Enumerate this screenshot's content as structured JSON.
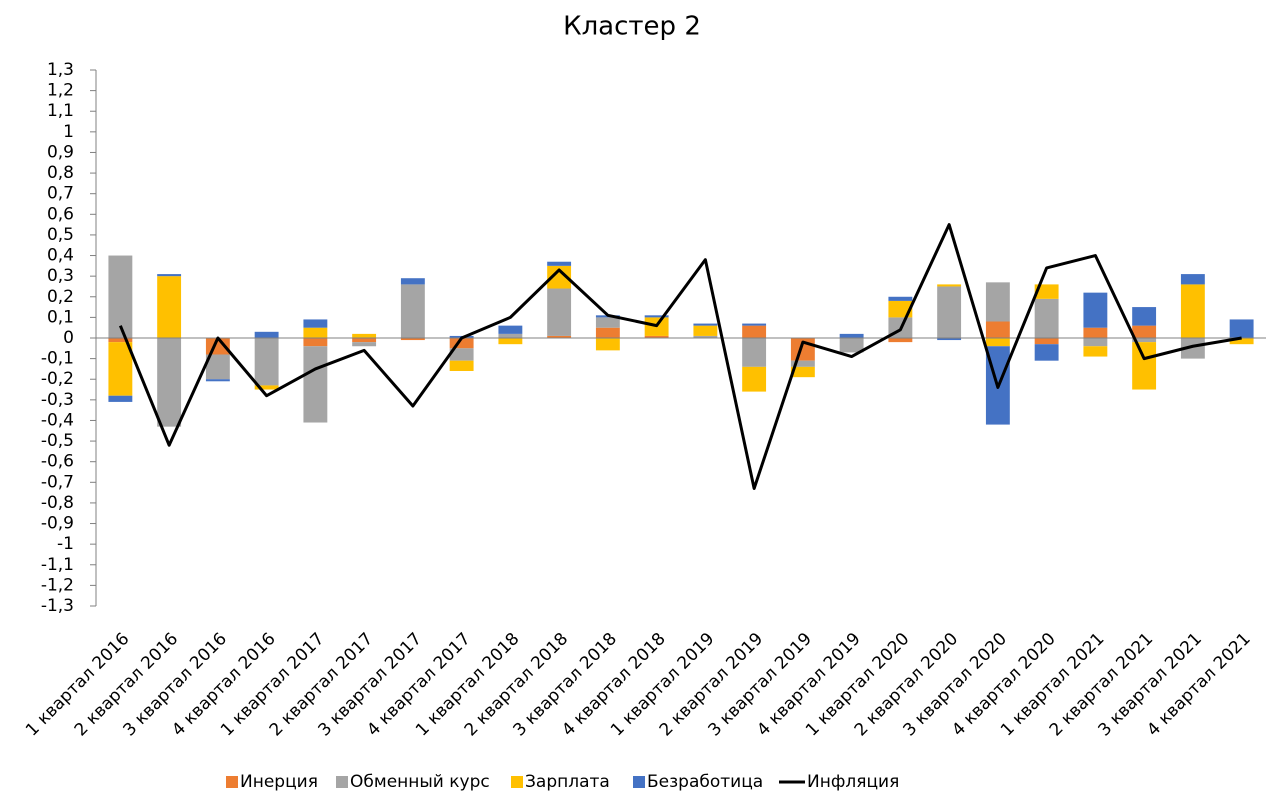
{
  "chart_data": {
    "type": "bar",
    "stacked": true,
    "title": "Кластер 2",
    "categories": [
      "1 квартал 2016",
      "2 квартал 2016",
      "3 квартал 2016",
      "4 квартал 2016",
      "1 квартал 2017",
      "2 квартал 2017",
      "3 квартал 2017",
      "4 квартал 2017",
      "1 квартал 2018",
      "2 квартал 2018",
      "3 квартал 2018",
      "4 квартал 2018",
      "1 квартал 2019",
      "2 квартал 2019",
      "3 квартал 2019",
      "4 квартал 2019",
      "1 квартал 2020",
      "2 квартал 2020",
      "3 квартал 2020",
      "4 квартал 2020",
      "1 квартал 2021",
      "2 квартал 2021",
      "3 квартал 2021",
      "4 квартал 2021"
    ],
    "series": [
      {
        "name": "Инерция",
        "type": "bar",
        "color": "#ed7d31",
        "values": [
          -0.02,
          0,
          -0.08,
          0,
          -0.04,
          -0.02,
          -0.01,
          -0.05,
          0,
          0.01,
          0.05,
          0.01,
          0,
          0.06,
          -0.11,
          0,
          -0.02,
          0,
          0.08,
          -0.03,
          0.05,
          0.06,
          0,
          0
        ]
      },
      {
        "name": "Обменный курс",
        "type": "bar",
        "color": "#a5a5a5",
        "values": [
          0.4,
          -0.43,
          -0.12,
          -0.23,
          -0.37,
          -0.02,
          0.26,
          -0.06,
          0.02,
          0.23,
          0.05,
          0,
          0.01,
          -0.14,
          -0.03,
          -0.07,
          0.1,
          0.25,
          0.19,
          0.19,
          -0.04,
          -0.02,
          -0.1,
          0
        ]
      },
      {
        "name": "Зарплата",
        "type": "bar",
        "color": "#ffc000",
        "values": [
          -0.26,
          0.3,
          0,
          -0.02,
          0.05,
          0.02,
          0,
          -0.05,
          -0.03,
          0.11,
          -0.06,
          0.09,
          0.05,
          -0.12,
          -0.05,
          0,
          0.08,
          0.01,
          -0.04,
          0.07,
          -0.05,
          -0.23,
          0.26,
          -0.03
        ]
      },
      {
        "name": "Безработица",
        "type": "bar",
        "color": "#4472c4",
        "values": [
          -0.03,
          0.01,
          -0.01,
          0.03,
          0.04,
          0,
          0.03,
          0.01,
          0.04,
          0.02,
          0.01,
          0.01,
          0.01,
          0.01,
          0,
          0.02,
          0.02,
          -0.01,
          -0.38,
          -0.08,
          0.17,
          0.09,
          0.05,
          0.09
        ]
      },
      {
        "name": "Инфляция",
        "type": "line",
        "color": "#000000",
        "values": [
          0.06,
          -0.52,
          0,
          -0.28,
          -0.15,
          -0.06,
          -0.33,
          0,
          0.1,
          0.33,
          0.11,
          0.06,
          0.38,
          -0.73,
          -0.02,
          -0.09,
          0.04,
          0.55,
          -0.24,
          0.34,
          0.4,
          -0.1,
          -0.04,
          0
        ]
      }
    ],
    "ylim": [
      -1.3,
      1.3
    ],
    "yticks": [
      {
        "value": 1.3,
        "label": "1,3"
      },
      {
        "value": 1.2,
        "label": "1,2"
      },
      {
        "value": 1.1,
        "label": "1,1"
      },
      1,
      {
        "value": 0.9,
        "label": "0,9"
      },
      {
        "value": 0.8,
        "label": "0,8"
      },
      {
        "value": 0.7,
        "label": "0,7"
      },
      {
        "value": 0.6,
        "label": "0,6"
      },
      {
        "value": 0.5,
        "label": "0,5"
      },
      {
        "value": 0.4,
        "label": "0,4"
      },
      {
        "value": 0.3,
        "label": "0,3"
      },
      {
        "value": 0.2,
        "label": "0,2"
      },
      {
        "value": 0.1,
        "label": "0,1"
      },
      0,
      {
        "value": -0.1,
        "label": "-0,1"
      },
      {
        "value": -0.2,
        "label": "-0,2"
      },
      {
        "value": -0.3,
        "label": "-0,3"
      },
      {
        "value": -0.4,
        "label": "-0,4"
      },
      {
        "value": -0.5,
        "label": "-0,5"
      },
      {
        "value": -0.6,
        "label": "-0,6"
      },
      {
        "value": -0.7,
        "label": "-0,7"
      },
      {
        "value": -0.8,
        "label": "-0,8"
      },
      {
        "value": -0.9,
        "label": "-0,9"
      },
      -1,
      {
        "value": -1.1,
        "label": "-1,1"
      },
      {
        "value": -1.2,
        "label": "-1,2"
      },
      {
        "value": -1.3,
        "label": "-1,3"
      }
    ],
    "grid": false,
    "legend": "bottom"
  }
}
